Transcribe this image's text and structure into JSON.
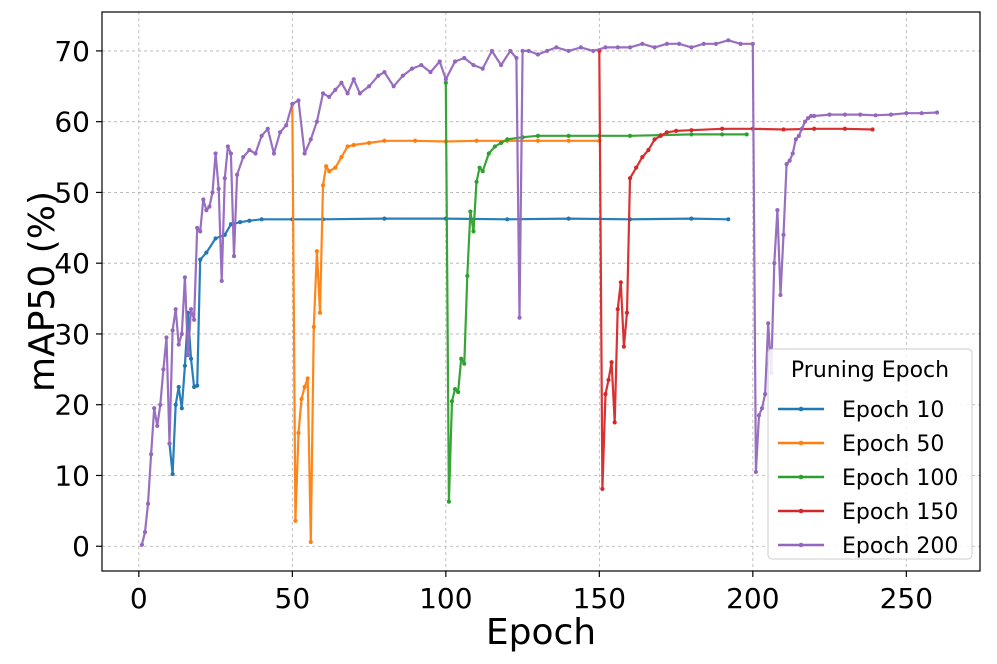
{
  "chart_data": {
    "type": "line",
    "title": "",
    "xlabel": "Epoch",
    "ylabel": "mAP50 (%)",
    "xlim": [
      -12,
      274
    ],
    "ylim": [
      -3.5,
      75.5
    ],
    "xticks": [
      0,
      50,
      100,
      150,
      200,
      250
    ],
    "yticks": [
      0,
      10,
      20,
      30,
      40,
      50,
      60,
      70
    ],
    "grid": true,
    "legend": {
      "title": "Pruning Epoch",
      "position": "bottom-right"
    },
    "series": [
      {
        "name": "Epoch 10",
        "color": "#1f77b4",
        "x": [
          10,
          11,
          12,
          13,
          14,
          15,
          16,
          17,
          18,
          19,
          20,
          22,
          25,
          28,
          30,
          33,
          36,
          40,
          50,
          60,
          80,
          100,
          120,
          140,
          160,
          180,
          192
        ],
        "y": [
          14.5,
          10.2,
          20,
          22.5,
          19.5,
          25.5,
          33,
          26.5,
          22.5,
          22.7,
          40.5,
          41.5,
          43.5,
          44,
          45.5,
          45.8,
          46,
          46.2,
          46.2,
          46.2,
          46.3,
          46.3,
          46.2,
          46.3,
          46.2,
          46.3,
          46.2
        ]
      },
      {
        "name": "Epoch 50",
        "color": "#ff7f0e",
        "x": [
          50,
          51,
          52,
          53,
          54,
          55,
          56,
          57,
          58,
          59,
          60,
          61,
          62,
          64,
          66,
          68,
          70,
          75,
          80,
          90,
          100,
          110,
          120,
          130,
          140,
          150
        ],
        "y": [
          62.5,
          3.6,
          16,
          20.8,
          22.5,
          23.7,
          0.6,
          31,
          41.7,
          33,
          51,
          53.7,
          53,
          53.5,
          55,
          56.5,
          56.7,
          57,
          57.3,
          57.3,
          57.2,
          57.3,
          57.3,
          57.3,
          57.3,
          57.3
        ]
      },
      {
        "name": "Epoch 100",
        "color": "#2ca02c",
        "x": [
          100,
          101,
          102,
          103,
          104,
          105,
          106,
          107,
          108,
          109,
          110,
          111,
          112,
          114,
          116,
          118,
          120,
          125,
          130,
          140,
          150,
          160,
          170,
          180,
          190,
          198
        ],
        "y": [
          65.5,
          6.3,
          20.5,
          22.2,
          21.8,
          26.5,
          25.8,
          38.2,
          47.3,
          44.5,
          51.5,
          53.5,
          53,
          55.5,
          56.5,
          57,
          57.5,
          57.8,
          58,
          58,
          58,
          58,
          58.1,
          58.2,
          58.2,
          58.2
        ]
      },
      {
        "name": "Epoch 150",
        "color": "#d62728",
        "x": [
          150,
          151,
          152,
          153,
          154,
          155,
          156,
          157,
          158,
          159,
          160,
          162,
          164,
          166,
          168,
          170,
          172,
          175,
          180,
          190,
          200,
          210,
          220,
          230,
          239
        ],
        "y": [
          70,
          8.1,
          21.5,
          23.5,
          26,
          17.5,
          33.5,
          37.3,
          28.2,
          33,
          52,
          53.5,
          55,
          56,
          57.5,
          58,
          58.5,
          58.7,
          58.8,
          59,
          59,
          58.9,
          59,
          59,
          58.9
        ]
      },
      {
        "name": "Epoch 200",
        "color": "#9467bd",
        "x": [
          1,
          2,
          3,
          4,
          5,
          6,
          7,
          8,
          9,
          10,
          11,
          12,
          13,
          14,
          15,
          16,
          17,
          18,
          19,
          20,
          21,
          22,
          23,
          24,
          25,
          26,
          27,
          28,
          29,
          30,
          31,
          32,
          34,
          36,
          38,
          40,
          42,
          44,
          46,
          48,
          50,
          52,
          54,
          56,
          58,
          60,
          62,
          64,
          66,
          68,
          70,
          72,
          75,
          78,
          80,
          83,
          86,
          89,
          92,
          95,
          98,
          100,
          103,
          106,
          109,
          112,
          115,
          118,
          121,
          123,
          124,
          125,
          127,
          130,
          133,
          136,
          140,
          144,
          148,
          152,
          156,
          160,
          164,
          168,
          172,
          176,
          180,
          184,
          188,
          192,
          196,
          200,
          201,
          202,
          203,
          204,
          205,
          206,
          207,
          208,
          209,
          210,
          211,
          212,
          213,
          214,
          215,
          216,
          217,
          218,
          219,
          220,
          225,
          230,
          235,
          240,
          245,
          250,
          255,
          260
        ],
        "y": [
          0.2,
          2,
          6,
          13,
          19.5,
          17,
          20,
          25,
          29.5,
          14.5,
          30.5,
          33.5,
          28.5,
          30,
          38,
          27,
          33.5,
          32,
          45,
          44.5,
          49,
          47.5,
          48,
          50,
          55.5,
          50.5,
          37.5,
          52,
          56.5,
          55.5,
          41,
          52.5,
          55,
          56,
          55.5,
          58,
          59,
          55.5,
          58.5,
          59.5,
          62.5,
          63,
          55.5,
          57.5,
          60,
          64,
          63.5,
          64.5,
          65.5,
          64,
          66,
          64,
          65,
          66.5,
          67,
          65,
          66.5,
          67.5,
          68,
          67,
          68.5,
          66,
          68.5,
          69,
          68,
          67.5,
          70,
          68,
          70,
          69,
          32.3,
          70,
          70,
          69.5,
          70,
          70.5,
          70,
          70.5,
          70,
          70.5,
          70.5,
          70.5,
          71,
          70.5,
          71,
          71,
          70.5,
          71,
          71,
          71.5,
          71,
          71,
          10.5,
          18.5,
          19.5,
          21.5,
          31.5,
          24.5,
          40,
          47.5,
          35.5,
          44,
          54,
          54.5,
          55.5,
          57.5,
          58,
          59,
          60,
          60.5,
          60.8,
          60.8,
          61,
          61,
          61,
          60.9,
          61,
          61.2,
          61.2,
          61.3
        ]
      }
    ]
  }
}
